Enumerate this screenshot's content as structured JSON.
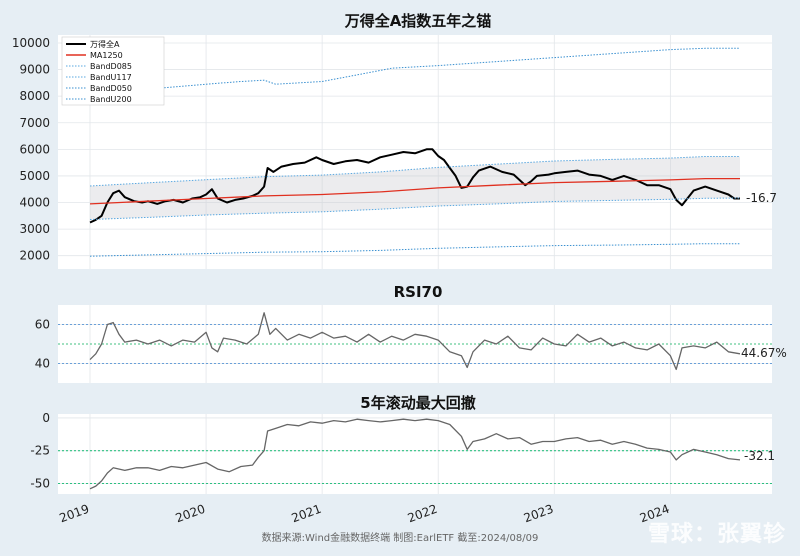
{
  "chart_data": [
    {
      "type": "line",
      "title": "万得全A指数五年之锚",
      "ylim": [
        1500,
        10300
      ],
      "yticks": [
        2000,
        3000,
        4000,
        5000,
        6000,
        7000,
        8000,
        9000,
        10000
      ],
      "x_range": [
        2019.0,
        2024.6
      ],
      "legend_position": "top-left",
      "grid": true,
      "end_annotation": "-16.7",
      "series": [
        {
          "name": "万得全A",
          "color": "#000000",
          "style": "solid",
          "x": [
            2019.0,
            2019.05,
            2019.1,
            2019.15,
            2019.2,
            2019.25,
            2019.3,
            2019.38,
            2019.45,
            2019.5,
            2019.58,
            2019.65,
            2019.72,
            2019.8,
            2019.88,
            2019.95,
            2020.0,
            2020.05,
            2020.1,
            2020.18,
            2020.25,
            2020.32,
            2020.4,
            2020.45,
            2020.5,
            2020.53,
            2020.58,
            2020.65,
            2020.75,
            2020.85,
            2020.95,
            2021.0,
            2021.1,
            2021.2,
            2021.3,
            2021.4,
            2021.5,
            2021.6,
            2021.7,
            2021.8,
            2021.9,
            2021.95,
            2022.0,
            2022.05,
            2022.1,
            2022.15,
            2022.2,
            2022.25,
            2022.3,
            2022.35,
            2022.45,
            2022.55,
            2022.65,
            2022.75,
            2022.8,
            2022.85,
            2022.95,
            2023.0,
            2023.1,
            2023.2,
            2023.3,
            2023.4,
            2023.5,
            2023.6,
            2023.7,
            2023.8,
            2023.9,
            2024.0,
            2024.05,
            2024.1,
            2024.2,
            2024.3,
            2024.4,
            2024.5,
            2024.55,
            2024.6
          ],
          "values": [
            3250,
            3350,
            3500,
            4000,
            4350,
            4450,
            4200,
            4050,
            4000,
            4050,
            3950,
            4050,
            4100,
            4000,
            4150,
            4200,
            4300,
            4500,
            4150,
            4000,
            4100,
            4150,
            4250,
            4350,
            4600,
            5300,
            5150,
            5350,
            5450,
            5500,
            5700,
            5600,
            5450,
            5550,
            5600,
            5500,
            5700,
            5800,
            5900,
            5850,
            6000,
            6000,
            5750,
            5600,
            5300,
            5000,
            4550,
            4600,
            4950,
            5200,
            5350,
            5150,
            5050,
            4650,
            4800,
            5000,
            5050,
            5100,
            5150,
            5200,
            5050,
            5000,
            4850,
            5000,
            4850,
            4650,
            4650,
            4500,
            4100,
            3900,
            4450,
            4600,
            4450,
            4300,
            4150,
            4150
          ]
        },
        {
          "name": "MA1250",
          "color": "#e03020",
          "style": "solid",
          "x": [
            2019.0,
            2019.5,
            2020.0,
            2020.5,
            2021.0,
            2021.5,
            2022.0,
            2022.5,
            2023.0,
            2023.5,
            2024.0,
            2024.3,
            2024.6
          ],
          "values": [
            3950,
            4050,
            4150,
            4250,
            4300,
            4400,
            4550,
            4650,
            4750,
            4800,
            4850,
            4900,
            4900
          ]
        },
        {
          "name": "BandD085",
          "color": "#5aa8e0",
          "style": "dotted",
          "x": [
            2019.0,
            2019.5,
            2020.0,
            2020.5,
            2021.0,
            2021.5,
            2022.0,
            2022.5,
            2023.0,
            2023.5,
            2024.0,
            2024.3,
            2024.6
          ],
          "values": [
            3360,
            3440,
            3530,
            3600,
            3650,
            3750,
            3870,
            3950,
            4040,
            4080,
            4120,
            4160,
            4170
          ]
        },
        {
          "name": "BandU117",
          "color": "#5aa8e0",
          "style": "dotted",
          "x": [
            2019.0,
            2019.5,
            2020.0,
            2020.5,
            2021.0,
            2021.5,
            2022.0,
            2022.5,
            2023.0,
            2023.5,
            2024.0,
            2024.3,
            2024.6
          ],
          "values": [
            4620,
            4740,
            4860,
            4970,
            5030,
            5150,
            5320,
            5440,
            5560,
            5620,
            5670,
            5730,
            5730
          ]
        },
        {
          "name": "BandD050",
          "color": "#3a90d0",
          "style": "dotted",
          "x": [
            2019.0,
            2019.5,
            2020.0,
            2020.5,
            2021.0,
            2021.5,
            2022.0,
            2022.5,
            2023.0,
            2023.5,
            2024.0,
            2024.3,
            2024.6
          ],
          "values": [
            1980,
            2030,
            2080,
            2130,
            2150,
            2200,
            2280,
            2330,
            2380,
            2400,
            2430,
            2450,
            2450
          ]
        },
        {
          "name": "BandU200",
          "color": "#3a90d0",
          "style": "dotted",
          "x": [
            2019.0,
            2019.3,
            2019.6,
            2020.0,
            2020.3,
            2020.5,
            2020.6,
            2021.0,
            2021.3,
            2021.6,
            2022.0,
            2022.5,
            2023.0,
            2023.5,
            2024.0,
            2024.3,
            2024.6
          ],
          "values": [
            7900,
            8100,
            8300,
            8450,
            8550,
            8600,
            8450,
            8550,
            8800,
            9050,
            9150,
            9300,
            9450,
            9600,
            9750,
            9800,
            9800
          ]
        }
      ]
    },
    {
      "type": "line",
      "title": "RSI70",
      "ylim": [
        30,
        70
      ],
      "yticks": [
        40,
        60
      ],
      "x_range": [
        2019.0,
        2024.6
      ],
      "grid": true,
      "reference_lines": [
        {
          "value": 60,
          "color": "#6aa0d8",
          "style": "dotted"
        },
        {
          "value": 50,
          "color": "#40c080",
          "style": "dotted"
        },
        {
          "value": 40,
          "color": "#6aa0d8",
          "style": "dotted"
        }
      ],
      "end_annotation": "44.67%",
      "series": [
        {
          "name": "RSI70",
          "color": "#666666",
          "style": "solid",
          "x": [
            2019.0,
            2019.05,
            2019.1,
            2019.15,
            2019.2,
            2019.25,
            2019.3,
            2019.4,
            2019.5,
            2019.6,
            2019.7,
            2019.8,
            2019.9,
            2020.0,
            2020.05,
            2020.1,
            2020.15,
            2020.25,
            2020.35,
            2020.45,
            2020.5,
            2020.55,
            2020.6,
            2020.7,
            2020.8,
            2020.9,
            2021.0,
            2021.1,
            2021.2,
            2021.3,
            2021.4,
            2021.5,
            2021.6,
            2021.7,
            2021.8,
            2021.9,
            2022.0,
            2022.1,
            2022.2,
            2022.25,
            2022.3,
            2022.4,
            2022.5,
            2022.6,
            2022.7,
            2022.8,
            2022.9,
            2023.0,
            2023.1,
            2023.2,
            2023.3,
            2023.4,
            2023.5,
            2023.6,
            2023.7,
            2023.8,
            2023.9,
            2024.0,
            2024.05,
            2024.1,
            2024.2,
            2024.3,
            2024.4,
            2024.5,
            2024.6
          ],
          "values": [
            42,
            45,
            50,
            60,
            61,
            55,
            51,
            52,
            50,
            52,
            49,
            52,
            51,
            56,
            48,
            46,
            53,
            52,
            50,
            55,
            66,
            55,
            58,
            52,
            55,
            53,
            56,
            53,
            54,
            51,
            55,
            51,
            54,
            52,
            55,
            54,
            52,
            46,
            44,
            38,
            46,
            52,
            50,
            54,
            48,
            47,
            53,
            50,
            49,
            55,
            51,
            53,
            49,
            51,
            48,
            47,
            50,
            44,
            37,
            48,
            49,
            48,
            51,
            46,
            45
          ]
        }
      ]
    },
    {
      "type": "line",
      "title": "5年滚动最大回撤",
      "ylim": [
        -58,
        3
      ],
      "yticks": [
        0,
        -25,
        -50
      ],
      "x_range": [
        2019.0,
        2024.6
      ],
      "grid": true,
      "reference_lines": [
        {
          "value": -25,
          "color": "#2cc080",
          "style": "dotted"
        },
        {
          "value": -50,
          "color": "#2cc080",
          "style": "dotted"
        }
      ],
      "end_annotation": "-32.1",
      "series": [
        {
          "name": "5年滚动最大回撤",
          "color": "#666666",
          "style": "solid",
          "x": [
            2019.0,
            2019.05,
            2019.1,
            2019.15,
            2019.2,
            2019.3,
            2019.4,
            2019.5,
            2019.6,
            2019.7,
            2019.8,
            2019.9,
            2020.0,
            2020.1,
            2020.2,
            2020.3,
            2020.4,
            2020.45,
            2020.5,
            2020.53,
            2020.6,
            2020.7,
            2020.8,
            2020.9,
            2021.0,
            2021.1,
            2021.2,
            2021.3,
            2021.4,
            2021.5,
            2021.6,
            2021.7,
            2021.8,
            2021.9,
            2022.0,
            2022.1,
            2022.2,
            2022.25,
            2022.3,
            2022.4,
            2022.5,
            2022.6,
            2022.7,
            2022.8,
            2022.9,
            2023.0,
            2023.1,
            2023.2,
            2023.3,
            2023.4,
            2023.5,
            2023.6,
            2023.7,
            2023.8,
            2023.9,
            2024.0,
            2024.05,
            2024.1,
            2024.2,
            2024.3,
            2024.4,
            2024.5,
            2024.6
          ],
          "values": [
            -54,
            -52,
            -48,
            -42,
            -38,
            -40,
            -38,
            -38,
            -40,
            -37,
            -38,
            -36,
            -34,
            -39,
            -41,
            -37,
            -36,
            -30,
            -25,
            -10,
            -8,
            -5,
            -6,
            -3,
            -4,
            -2,
            -3,
            -1,
            -2,
            -3,
            -2,
            -1,
            -2,
            -1,
            -2,
            -5,
            -14,
            -24,
            -18,
            -16,
            -12,
            -16,
            -15,
            -20,
            -18,
            -18,
            -16,
            -15,
            -18,
            -17,
            -20,
            -18,
            -20,
            -23,
            -24,
            -26,
            -32,
            -28,
            -24,
            -26,
            -28,
            -31,
            -32
          ]
        }
      ]
    }
  ],
  "x_axis": {
    "tick_labels": [
      "2019",
      "2020",
      "2021",
      "2022",
      "2023",
      "2024"
    ],
    "tick_values": [
      2019,
      2020,
      2021,
      2022,
      2023,
      2024
    ]
  },
  "legend": [
    "万得全A",
    "MA1250",
    "BandD085",
    "BandU117",
    "BandD050",
    "BandU200"
  ],
  "footer": "数据来源:Wind金融数据终端  制图:EarlETF 截至:2024/08/09",
  "watermark": "雪球：张翼轸"
}
